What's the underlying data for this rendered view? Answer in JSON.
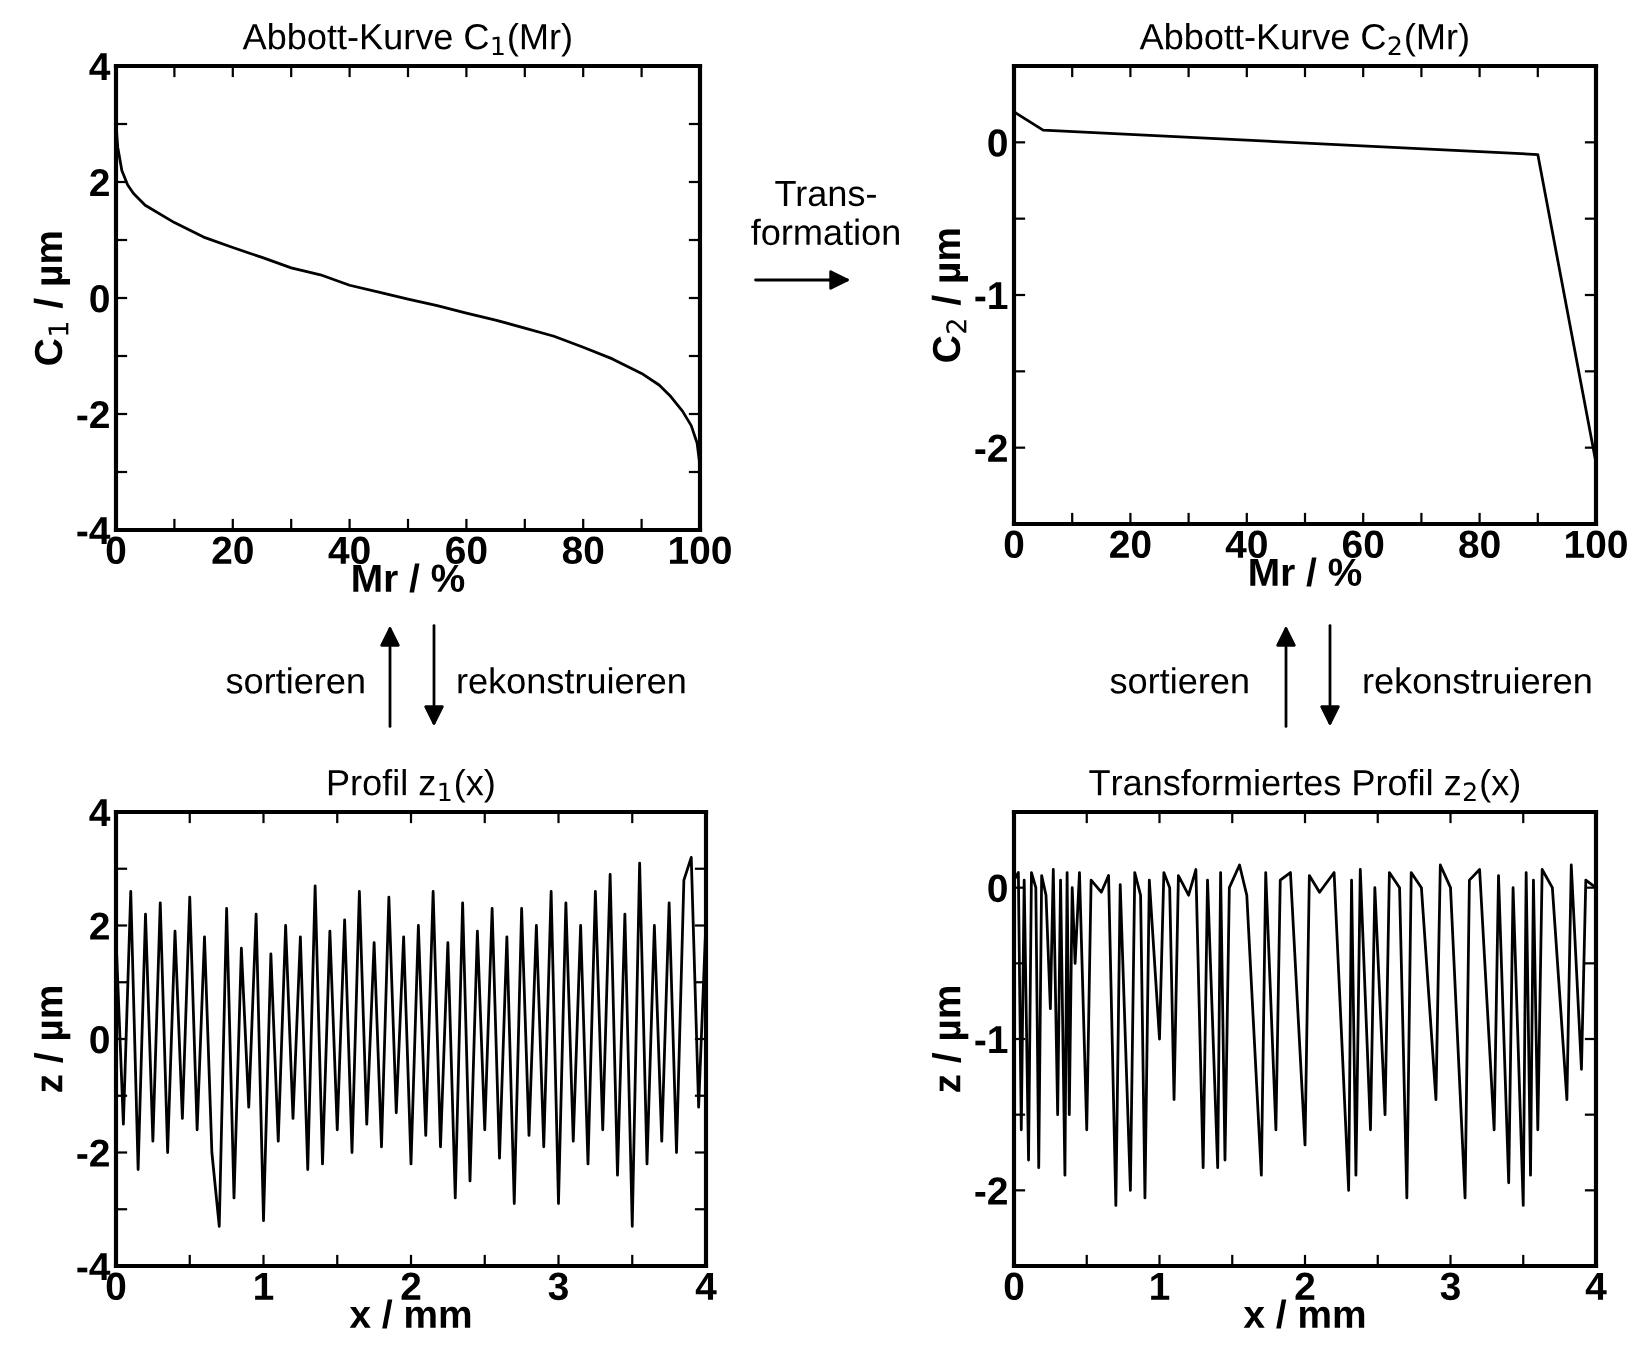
{
  "chart_data": [
    {
      "type": "line",
      "title": "Abbott-Kurve C$_{1}$(Mr)",
      "xlabel": "Mr / %",
      "ylabel": "C$_{1}$ / µm",
      "color": "#000000",
      "x": [
        0,
        0.3,
        1,
        2,
        3,
        5,
        10,
        15,
        20,
        25,
        30,
        35,
        40,
        45,
        50,
        55,
        60,
        65,
        70,
        75,
        80,
        85,
        90,
        93,
        95,
        97,
        98.5,
        99.5,
        100
      ],
      "values": [
        3.0,
        2.6,
        2.2,
        1.95,
        1.8,
        1.6,
        1.3,
        1.05,
        0.87,
        0.7,
        0.52,
        0.4,
        0.22,
        0.1,
        -0.02,
        -0.13,
        -0.26,
        -0.38,
        -0.52,
        -0.66,
        -0.85,
        -1.05,
        -1.3,
        -1.5,
        -1.7,
        -1.95,
        -2.2,
        -2.5,
        -2.9
      ],
      "xlim": [
        0,
        100
      ],
      "ylim": [
        -4,
        4
      ],
      "xticks": [
        0,
        {
          "value": 10,
          "label": null
        },
        20,
        {
          "value": 30,
          "label": null
        },
        40,
        {
          "value": 50,
          "label": null
        },
        60,
        {
          "value": 70,
          "label": null
        },
        80,
        {
          "value": 90,
          "label": null
        },
        100
      ],
      "yticks": [
        -4,
        {
          "value": -3,
          "label": null
        },
        -2,
        {
          "value": -1,
          "label": null
        },
        0,
        {
          "value": 1,
          "label": null
        },
        2,
        {
          "value": 3,
          "label": null
        },
        4
      ],
      "grid": false,
      "annotations": [
        "Trans-\nformation"
      ]
    },
    {
      "type": "line",
      "title": "Abbott-Kurve C$_{2}$(Mr)",
      "xlabel": "Mr / %",
      "ylabel": "C$_{2}$ / µm",
      "color": "#000000",
      "x": [
        0,
        5,
        90,
        100
      ],
      "values": [
        0.2,
        0.08,
        -0.08,
        -2.1
      ],
      "xlim": [
        0,
        100
      ],
      "ylim": [
        -2.5,
        0.5
      ],
      "xticks": [
        0,
        {
          "value": 10,
          "label": null
        },
        20,
        {
          "value": 30,
          "label": null
        },
        40,
        {
          "value": 50,
          "label": null
        },
        60,
        {
          "value": 70,
          "label": null
        },
        80,
        {
          "value": 90,
          "label": null
        },
        100
      ],
      "yticks": [
        {
          "value": -2.5,
          "label": null
        },
        -2,
        {
          "value": -1.5,
          "label": null
        },
        -1,
        {
          "value": -0.5,
          "label": null
        },
        0,
        {
          "value": 0.5,
          "label": null
        }
      ],
      "grid": false
    },
    {
      "type": "line",
      "title": "Profil z$_{1}$(x)",
      "xlabel": "x / mm",
      "ylabel": "z / µm",
      "color": "#000000",
      "x": [
        0,
        0.05,
        0.1,
        0.15,
        0.2,
        0.25,
        0.3,
        0.35,
        0.4,
        0.45,
        0.5,
        0.55,
        0.6,
        0.65,
        0.7,
        0.75,
        0.8,
        0.85,
        0.9,
        0.95,
        1.0,
        1.05,
        1.1,
        1.15,
        1.2,
        1.25,
        1.3,
        1.35,
        1.4,
        1.45,
        1.5,
        1.55,
        1.6,
        1.65,
        1.7,
        1.75,
        1.8,
        1.85,
        1.9,
        1.95,
        2.0,
        2.05,
        2.1,
        2.15,
        2.2,
        2.25,
        2.3,
        2.35,
        2.4,
        2.45,
        2.5,
        2.55,
        2.6,
        2.65,
        2.7,
        2.75,
        2.8,
        2.85,
        2.9,
        2.95,
        3.0,
        3.05,
        3.1,
        3.15,
        3.2,
        3.25,
        3.3,
        3.35,
        3.4,
        3.45,
        3.5,
        3.55,
        3.6,
        3.65,
        3.7,
        3.75,
        3.8,
        3.85,
        3.9,
        3.95,
        4.0
      ],
      "values": [
        1.8,
        -1.5,
        2.6,
        -2.3,
        2.2,
        -1.8,
        2.4,
        -2.0,
        1.9,
        -1.4,
        2.5,
        -1.6,
        1.8,
        -2.0,
        -3.3,
        2.3,
        -2.8,
        1.6,
        -1.2,
        2.2,
        -3.2,
        1.5,
        -1.8,
        2.0,
        -1.4,
        1.8,
        -2.3,
        2.7,
        -2.2,
        1.9,
        -1.6,
        2.1,
        -2.0,
        2.6,
        -1.5,
        1.7,
        -1.9,
        2.5,
        -1.3,
        1.8,
        -2.2,
        2.0,
        -1.7,
        2.6,
        -1.9,
        1.7,
        -2.8,
        2.4,
        -2.5,
        1.9,
        -1.6,
        2.3,
        -2.1,
        1.8,
        -2.9,
        2.3,
        -1.7,
        2.0,
        -1.9,
        2.6,
        -2.9,
        2.4,
        -1.8,
        2.0,
        -2.2,
        2.6,
        -1.6,
        2.9,
        -2.4,
        2.2,
        -3.3,
        3.1,
        -2.2,
        2.0,
        -1.8,
        2.4,
        -2.0,
        2.8,
        3.2,
        -1.2,
        2.1
      ],
      "xlim": [
        0,
        4
      ],
      "ylim": [
        -4,
        4
      ],
      "xticks": [
        0,
        {
          "value": 0.5,
          "label": null
        },
        1,
        {
          "value": 1.5,
          "label": null
        },
        2,
        {
          "value": 2.5,
          "label": null
        },
        3,
        {
          "value": 3.5,
          "label": null
        },
        4
      ],
      "yticks": [
        -4,
        {
          "value": -3,
          "label": null
        },
        -2,
        {
          "value": -1,
          "label": null
        },
        0,
        {
          "value": 1,
          "label": null
        },
        2,
        {
          "value": 3,
          "label": null
        },
        4
      ],
      "grid": false,
      "annotations": [
        "sortieren",
        "rekonstruieren"
      ]
    },
    {
      "type": "line",
      "title": "Transformiertes Profil z$_{2}$(x)",
      "xlabel": "x / mm",
      "ylabel": "z / µm",
      "color": "#000000",
      "x": [
        0,
        0.03,
        0.05,
        0.07,
        0.1,
        0.12,
        0.15,
        0.17,
        0.19,
        0.22,
        0.25,
        0.27,
        0.3,
        0.32,
        0.35,
        0.365,
        0.38,
        0.4,
        0.42,
        0.45,
        0.5,
        0.53,
        0.6,
        0.65,
        0.7,
        0.73,
        0.8,
        0.83,
        0.87,
        0.9,
        0.93,
        1.0,
        1.03,
        1.07,
        1.1,
        1.13,
        1.2,
        1.25,
        1.3,
        1.33,
        1.4,
        1.42,
        1.45,
        1.48,
        1.55,
        1.6,
        1.7,
        1.73,
        1.8,
        1.83,
        1.9,
        2.0,
        2.03,
        2.1,
        2.2,
        2.3,
        2.32,
        2.35,
        2.38,
        2.45,
        2.48,
        2.55,
        2.58,
        2.65,
        2.7,
        2.73,
        2.8,
        2.9,
        2.93,
        3.0,
        3.1,
        3.13,
        3.2,
        3.3,
        3.33,
        3.4,
        3.43,
        3.5,
        3.52,
        3.55,
        3.57,
        3.6,
        3.63,
        3.7,
        3.8,
        3.83,
        3.9,
        3.93,
        4.0
      ],
      "values": [
        0.05,
        0.1,
        -1.6,
        0.05,
        -1.8,
        0.1,
        0.0,
        -1.85,
        0.08,
        -0.05,
        -0.8,
        0.12,
        -1.5,
        0.05,
        -1.9,
        0.1,
        -1.5,
        0.0,
        -0.5,
        0.1,
        -1.6,
        0.05,
        -0.03,
        0.08,
        -2.1,
        0.02,
        -2.0,
        0.1,
        -0.05,
        -2.05,
        0.05,
        -1.0,
        0.1,
        0.0,
        -1.4,
        0.08,
        -0.05,
        0.12,
        -1.85,
        0.05,
        -1.85,
        0.1,
        -1.8,
        0.0,
        0.15,
        -0.05,
        -1.9,
        0.1,
        -1.6,
        0.05,
        0.1,
        -1.7,
        0.08,
        -0.03,
        0.1,
        -2.0,
        0.05,
        -1.9,
        0.12,
        -1.6,
        0.0,
        -1.5,
        0.1,
        0.0,
        -2.05,
        0.1,
        0.0,
        -1.4,
        0.15,
        0.0,
        -2.05,
        0.05,
        0.12,
        -1.6,
        0.08,
        -1.95,
        0.0,
        -2.1,
        0.1,
        -1.9,
        0.05,
        -1.6,
        0.12,
        0.0,
        -1.4,
        0.15,
        -1.2,
        0.05,
        0.0
      ],
      "xlim": [
        0,
        4
      ],
      "ylim": [
        -2.5,
        0.5
      ],
      "xticks": [
        0,
        {
          "value": 0.5,
          "label": null
        },
        1,
        {
          "value": 1.5,
          "label": null
        },
        2,
        {
          "value": 2.5,
          "label": null
        },
        3,
        {
          "value": 3.5,
          "label": null
        },
        4
      ],
      "yticks": [
        {
          "value": -2.5,
          "label": null
        },
        -2,
        {
          "value": -1.5,
          "label": null
        },
        -1,
        {
          "value": -0.5,
          "label": null
        },
        0,
        {
          "value": 0.5,
          "label": null
        }
      ],
      "grid": false,
      "annotations": [
        "sortieren",
        "rekonstruieren"
      ]
    }
  ]
}
